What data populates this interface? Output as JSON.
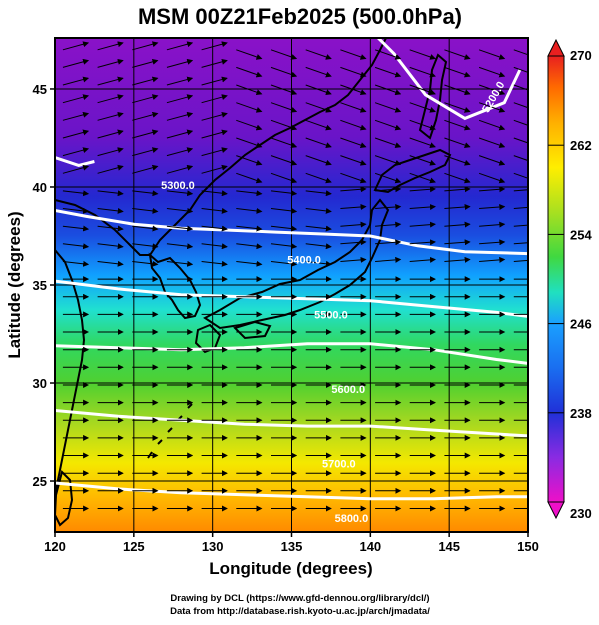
{
  "chart_data": {
    "type": "heatmap",
    "title": "MSM 00Z21Feb2025 (500.0hPa)",
    "xlabel": "Longitude (degrees)",
    "ylabel": "Latitude  (degrees)",
    "xlim": [
      120,
      150
    ],
    "ylim": [
      22.4,
      47.6
    ],
    "x_ticks": [
      "120",
      "125",
      "130",
      "135",
      "140",
      "145",
      "150"
    ],
    "y_ticks": [
      "25",
      "30",
      "35",
      "40",
      "45"
    ],
    "colorbar": {
      "ticks": [
        "230",
        "238",
        "246",
        "254",
        "262",
        "270"
      ],
      "range": [
        230,
        270
      ],
      "colors": [
        "#ee10c8",
        "#8a2be2",
        "#2030d8",
        "#1aa0ff",
        "#20e0c0",
        "#40d840",
        "#a8e020",
        "#ffee00",
        "#ffb000",
        "#ff6a00",
        "#e82020"
      ]
    },
    "background_field": {
      "description_rows_lat": [
        47,
        44,
        41,
        39,
        37,
        35,
        33,
        31,
        29,
        27,
        25,
        23
      ],
      "values_at_lat": [
        232,
        233,
        235,
        238,
        241,
        245,
        248,
        252,
        255,
        258,
        262,
        264
      ]
    },
    "contours": [
      {
        "label": "5300.0",
        "lon": [
          120,
          122,
          125,
          128,
          131,
          134,
          137,
          140,
          143,
          146,
          150
        ],
        "lat": [
          38.8,
          38.5,
          38.1,
          37.9,
          37.8,
          37.7,
          37.6,
          37.5,
          37.0,
          36.7,
          36.6
        ]
      },
      {
        "label": "5400.0",
        "lon": [
          120,
          124,
          128,
          132,
          136,
          140,
          144,
          148,
          150
        ],
        "lat": [
          35.2,
          34.8,
          34.5,
          34.4,
          34.3,
          34.2,
          33.9,
          33.6,
          33.4
        ]
      },
      {
        "label": "5500.0",
        "lon": [
          120,
          124,
          128,
          132,
          136,
          140,
          144,
          148,
          150
        ],
        "lat": [
          31.9,
          31.8,
          31.7,
          31.8,
          32.0,
          32.0,
          31.7,
          31.2,
          31.0
        ]
      },
      {
        "label": "5600.0",
        "lon": [
          120,
          124,
          128,
          132,
          136,
          140,
          144,
          148,
          150
        ],
        "lat": [
          28.6,
          28.3,
          28.1,
          27.9,
          27.8,
          27.8,
          27.6,
          27.4,
          27.3
        ]
      },
      {
        "label": "5700.0",
        "lon": [
          120,
          124,
          128,
          132,
          136,
          140,
          144,
          148,
          150
        ],
        "lat": [
          24.9,
          24.6,
          24.4,
          24.3,
          24.2,
          24.1,
          24.1,
          24.2,
          24.2
        ]
      },
      {
        "label": "5200.0",
        "lon": [
          140.5,
          141.5,
          143.5,
          146,
          148.5,
          149.5
        ],
        "lat": [
          47.6,
          46.8,
          44.7,
          43.5,
          44.3,
          46.0
        ]
      },
      {
        "label": "",
        "lon": [
          120,
          121.5,
          122.5
        ],
        "lat": [
          41.5,
          41.1,
          41.3
        ]
      }
    ],
    "contour_label_positions": [
      {
        "label": "5300.0",
        "lon": 127.8,
        "lat": 39.9
      },
      {
        "label": "5400.0",
        "lon": 135.8,
        "lat": 36.1
      },
      {
        "label": "5500.0",
        "lon": 137.5,
        "lat": 33.3
      },
      {
        "label": "5600.0",
        "lon": 138.6,
        "lat": 29.5
      },
      {
        "label": "5700.0",
        "lon": 138.0,
        "lat": 25.7
      },
      {
        "label": "5800.0",
        "lon": 138.8,
        "lat": 22.9
      },
      {
        "label": "5200.0",
        "lon": 148.0,
        "lat": 44.5
      }
    ],
    "wind_field": {
      "flow": "predominantly westerly",
      "arrow_style": "streamline vectors"
    }
  },
  "credits": {
    "line1": "Drawing by DCL (https://www.gfd-dennou.org/library/dcl/)",
    "line2": "Data from http://database.rish.kyoto-u.ac.jp/arch/jmadata/"
  }
}
